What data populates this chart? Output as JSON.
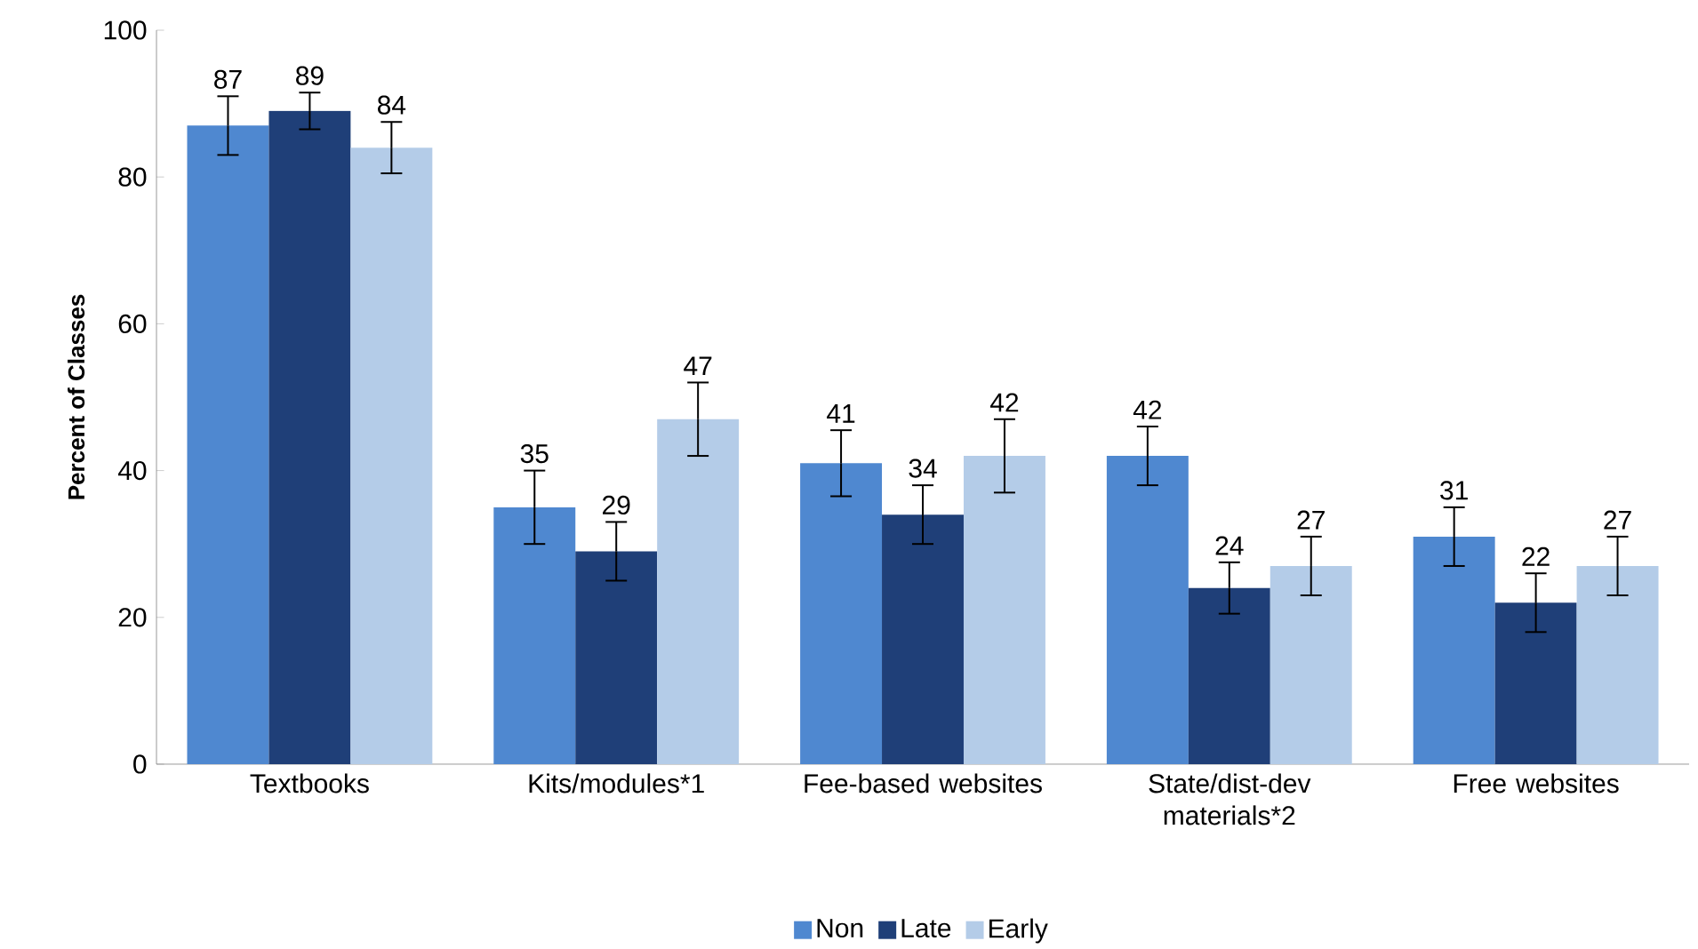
{
  "chart_data": {
    "type": "bar",
    "ylabel": "Percent of Classes",
    "categories": [
      "Textbooks",
      "Kits/modules*1",
      "Fee-based websites",
      "State/dist-dev materials*2",
      "Free websites"
    ],
    "series": [
      {
        "name": "Non",
        "color": "#4f88d0",
        "values": [
          87,
          35,
          41,
          42,
          31
        ],
        "errors": [
          4,
          5,
          4.5,
          4,
          4
        ]
      },
      {
        "name": "Late",
        "color": "#1f3f78",
        "values": [
          89,
          29,
          34,
          24,
          22
        ],
        "errors": [
          2.5,
          4,
          4,
          3.5,
          4
        ]
      },
      {
        "name": "Early",
        "color": "#b4cce8",
        "values": [
          84,
          47,
          42,
          27,
          27
        ],
        "errors": [
          3.5,
          5,
          5,
          4,
          4
        ]
      }
    ],
    "ylim": [
      0,
      100
    ],
    "yticks": [
      0,
      20,
      40,
      60,
      80,
      100
    ],
    "data_labels": true,
    "legend": "bottom",
    "grid": false
  }
}
